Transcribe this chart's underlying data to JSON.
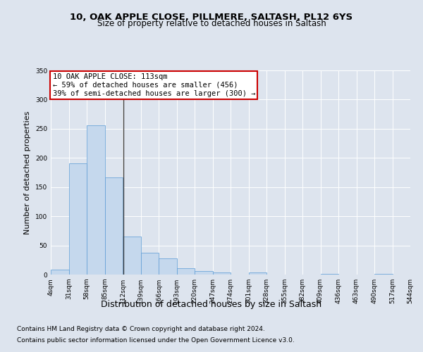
{
  "title1": "10, OAK APPLE CLOSE, PILLMERE, SALTASH, PL12 6YS",
  "title2": "Size of property relative to detached houses in Saltash",
  "xlabel": "Distribution of detached houses by size in Saltash",
  "ylabel": "Number of detached properties",
  "footer1": "Contains HM Land Registry data © Crown copyright and database right 2024.",
  "footer2": "Contains public sector information licensed under the Open Government Licence v3.0.",
  "annotation_line1": "10 OAK APPLE CLOSE: 113sqm",
  "annotation_line2": "← 59% of detached houses are smaller (456)",
  "annotation_line3": "39% of semi-detached houses are larger (300) →",
  "bar_color": "#c5d8ed",
  "bar_edge_color": "#5b9bd5",
  "vline_color": "#404040",
  "annotation_box_edge": "#cc0000",
  "annotation_box_face": "#ffffff",
  "bin_edges": [
    4,
    31,
    58,
    85,
    112,
    139,
    166,
    193,
    220,
    247,
    274,
    301,
    328,
    355,
    382,
    409,
    436,
    463,
    490,
    517,
    544
  ],
  "bar_heights": [
    8,
    191,
    256,
    167,
    65,
    37,
    28,
    11,
    6,
    4,
    0,
    4,
    0,
    0,
    0,
    1,
    0,
    0,
    1,
    0
  ],
  "vline_x": 113,
  "ylim": [
    0,
    350
  ],
  "yticks": [
    0,
    50,
    100,
    150,
    200,
    250,
    300,
    350
  ],
  "background_color": "#dde4ee",
  "plot_background": "#dde4ee",
  "grid_color": "#ffffff",
  "title1_fontsize": 9.5,
  "title2_fontsize": 8.5,
  "ylabel_fontsize": 8,
  "xlabel_fontsize": 9,
  "tick_fontsize": 6.5,
  "footer_fontsize": 6.5,
  "annotation_fontsize": 7.5
}
